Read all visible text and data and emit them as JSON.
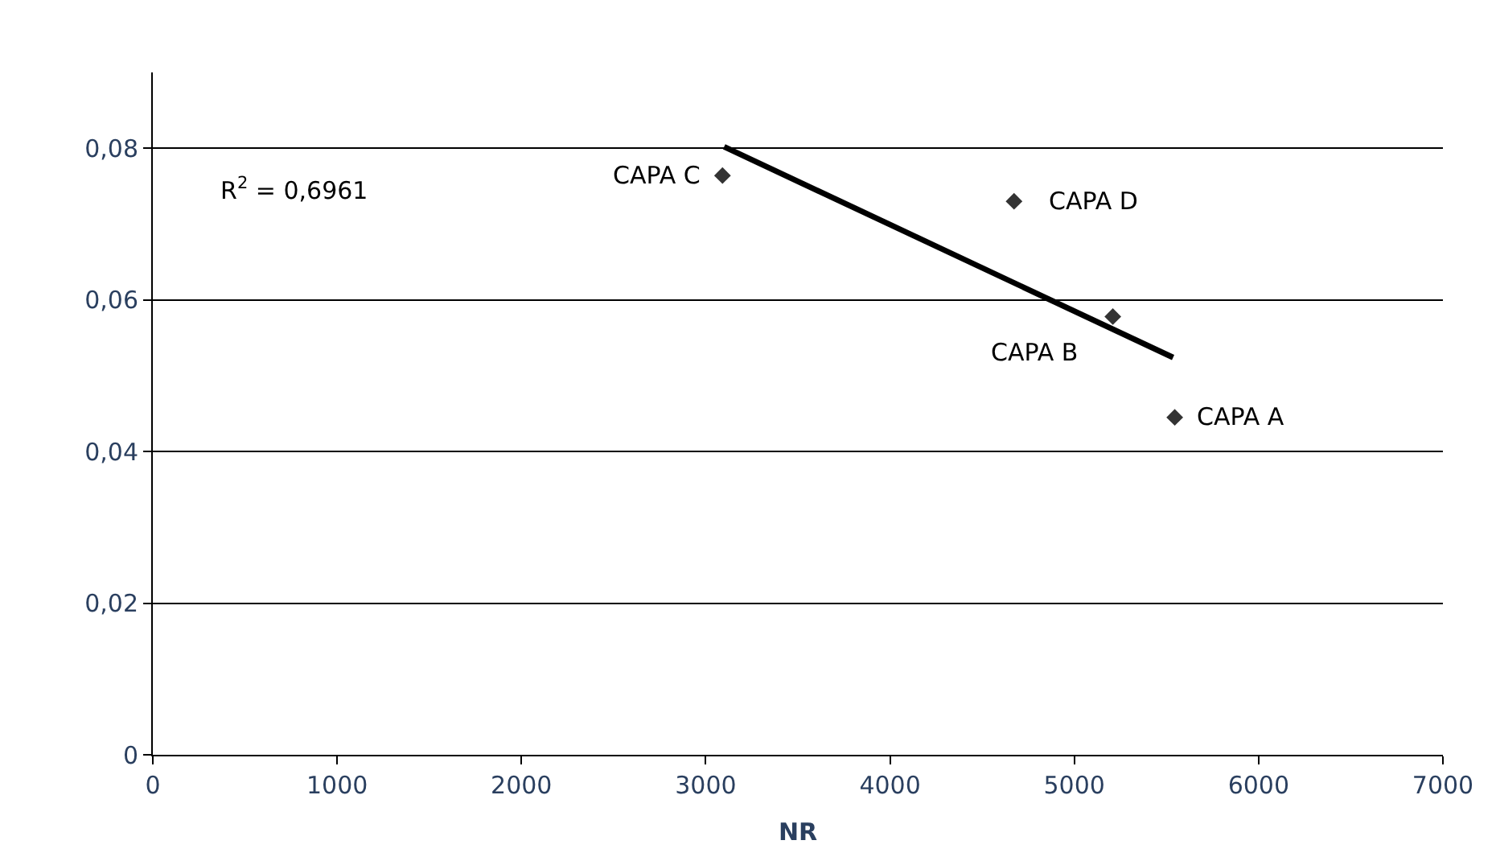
{
  "chart_data": {
    "type": "scatter",
    "xlabel": "NR",
    "series": [
      {
        "color": "#333333",
        "marker": "diamond",
        "x": [
          3091,
          4673,
          5209,
          5545
        ],
        "values": [
          0.0764,
          0.073,
          0.0578,
          0.0445
        ]
      },
      {
        "type": "line",
        "color": "#000000",
        "marker": "none",
        "line_style": "solid",
        "x": [
          3100,
          5536
        ],
        "values": [
          0.0802,
          0.0524
        ]
      }
    ],
    "annotations": [
      "R$^{2}$ = 0,6961",
      {
        "text": "CAPA C",
        "x": 3091,
        "y": 0.0764
      },
      {
        "text": "CAPA D",
        "x": 4673,
        "y": 0.073
      },
      {
        "text": "CAPA B",
        "x": 5209,
        "y": 0.0578
      },
      {
        "text": "CAPA A",
        "x": 5545,
        "y": 0.0445
      }
    ],
    "xlim": [
      0,
      7000
    ],
    "xticks": [
      0,
      1000,
      2000,
      3000,
      4000,
      5000,
      6000,
      7000
    ],
    "ylim": [
      0,
      0.09
    ],
    "yticks": [
      0,
      {
        "value": 0.02,
        "label": "0,02"
      },
      {
        "value": 0.04,
        "label": "0,04"
      },
      {
        "value": 0.06,
        "label": "0,06"
      },
      {
        "value": 0.08,
        "label": "0,08"
      }
    ],
    "grid": "y"
  }
}
